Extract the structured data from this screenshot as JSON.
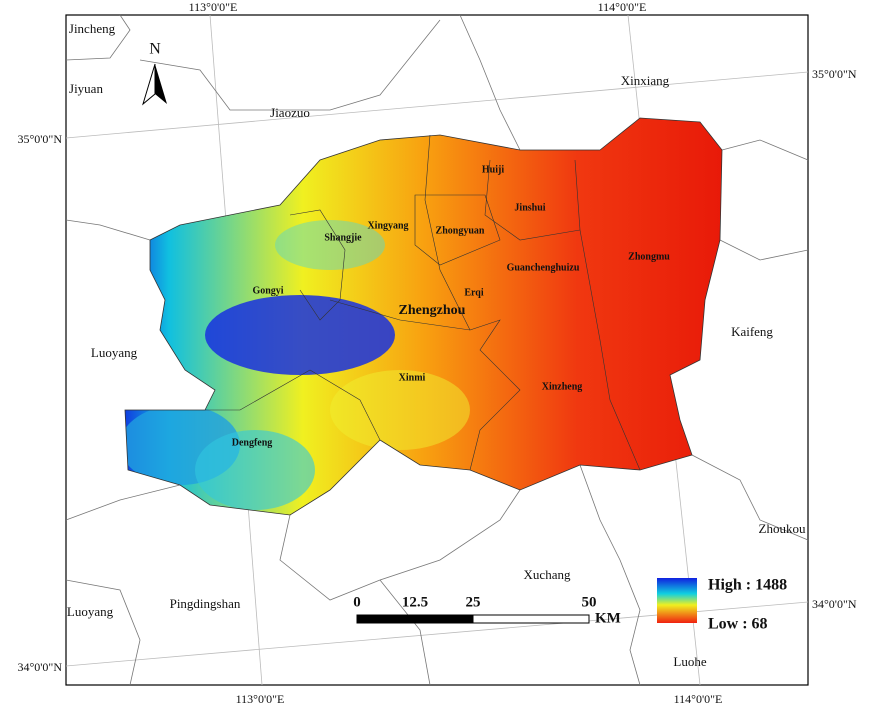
{
  "coordinates": [
    "113°0'0\"E",
    "114°0'0\"E",
    "113°0'0\"E",
    "114°0'0\"E",
    "35°0'0\"N",
    "34°0'0\"N",
    "35°0'0\"N",
    "34°0'0\"N"
  ],
  "places": [
    "Jincheng",
    "Jiyuan",
    "Jiaozuo",
    "Xinxiang",
    "Luoyang",
    "Kaifeng",
    "Zhoukou",
    "Xuchang",
    "Pingdingshan",
    "Luoyang",
    "Luohe"
  ],
  "districts": [
    "Huiji",
    "Jinshui",
    "Xingyang",
    "Shangjie",
    "Zhongyuan",
    "Zhongmu",
    "Guanchenghuizu",
    "Gongyi",
    "Erqi",
    "Zhengzhou",
    "Xinmi",
    "Xinzheng",
    "Dengfeng"
  ],
  "north_arrow": "N",
  "scale_bar": {
    "ticks": [
      0,
      12.5,
      25,
      50
    ],
    "unit": "KM"
  },
  "legend": {
    "high": "High : 1488",
    "low": "Low : 68"
  }
}
